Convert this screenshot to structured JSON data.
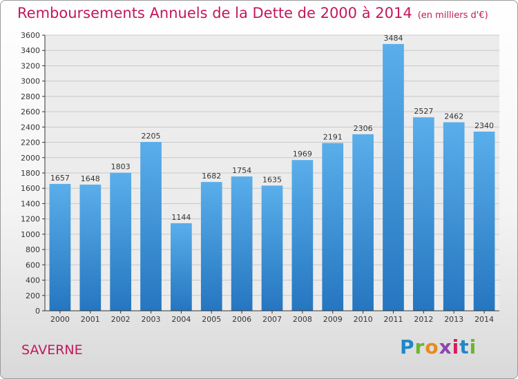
{
  "chart_data": {
    "type": "bar",
    "title": "Remboursements Annuels de la Dette de 2000 à 2014",
    "unit": "(en milliers d'€)",
    "categories": [
      "2000",
      "2001",
      "2002",
      "2003",
      "2004",
      "2005",
      "2006",
      "2007",
      "2008",
      "2009",
      "2010",
      "2011",
      "2012",
      "2013",
      "2014"
    ],
    "values": [
      1657,
      1648,
      1803,
      2205,
      1144,
      1682,
      1754,
      1635,
      1969,
      2191,
      2306,
      3484,
      2527,
      2462,
      2340
    ],
    "ylim": [
      0,
      3600
    ],
    "yticks": [
      0,
      200,
      400,
      600,
      800,
      1000,
      1200,
      1400,
      1600,
      1800,
      2000,
      2200,
      2400,
      2600,
      2800,
      3000,
      3200,
      3400,
      3600
    ],
    "grid": true,
    "bar_color": "#3a8fd6"
  },
  "footer": {
    "commune": "SAVERNE",
    "brand_letters": [
      {
        "char": "P",
        "color": "#1e88c8"
      },
      {
        "char": "r",
        "color": "#6ab52d"
      },
      {
        "char": "o",
        "color": "#e98a1c"
      },
      {
        "char": "x",
        "color": "#8e44ad"
      },
      {
        "char": "i",
        "color": "#d81b60"
      },
      {
        "char": "t",
        "color": "#1e88c8"
      },
      {
        "char": "i",
        "color": "#6ab52d"
      }
    ]
  }
}
